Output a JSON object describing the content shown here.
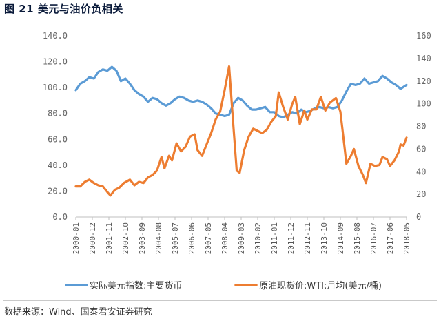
{
  "figure": {
    "title": "图 21 美元与油价负相关",
    "source": "数据来源：Wind、国泰君安证券研究"
  },
  "chart_data": {
    "type": "line",
    "title": "图 21 美元与油价负相关",
    "xlabel": "",
    "ylabel": "",
    "x_tick_labels": [
      "2000-01",
      "2000-12",
      "2001-11",
      "2002-10",
      "2003-09",
      "2004-08",
      "2005-07",
      "2006-06",
      "2007-05",
      "2008-04",
      "2009-03",
      "2010-02",
      "2011-01",
      "2011-12",
      "2012-11",
      "2013-10",
      "2014-09",
      "2015-08",
      "2016-07",
      "2017-06",
      "2018-05"
    ],
    "x_range": [
      "2000-01",
      "2018-05"
    ],
    "y_left": {
      "min": 0,
      "max": 140,
      "ticks": [
        "0.0",
        "20.0",
        "40.0",
        "60.0",
        "80.0",
        "100.0",
        "120.0",
        "140.0"
      ]
    },
    "y_right": {
      "min": 0,
      "max": 160,
      "ticks": [
        "0",
        "20",
        "40",
        "60",
        "80",
        "100",
        "120",
        "140",
        "160"
      ]
    },
    "grid": false,
    "legend_position": "bottom",
    "series": [
      {
        "name": "实际美元指数:主要货币",
        "axis": "left",
        "color": "#5b9bd5",
        "points": [
          [
            "2000-01",
            98
          ],
          [
            "2000-04",
            103
          ],
          [
            "2000-07",
            105
          ],
          [
            "2000-10",
            108
          ],
          [
            "2001-01",
            107
          ],
          [
            "2001-04",
            112
          ],
          [
            "2001-07",
            114
          ],
          [
            "2001-10",
            113
          ],
          [
            "2002-01",
            116
          ],
          [
            "2002-04",
            113
          ],
          [
            "2002-07",
            105
          ],
          [
            "2002-10",
            107
          ],
          [
            "2003-01",
            103
          ],
          [
            "2003-04",
            98
          ],
          [
            "2003-07",
            95
          ],
          [
            "2003-10",
            93
          ],
          [
            "2004-01",
            89
          ],
          [
            "2004-04",
            92
          ],
          [
            "2004-07",
            91
          ],
          [
            "2004-10",
            88
          ],
          [
            "2005-01",
            86
          ],
          [
            "2005-04",
            88
          ],
          [
            "2005-07",
            91
          ],
          [
            "2005-10",
            93
          ],
          [
            "2006-01",
            92
          ],
          [
            "2006-04",
            90
          ],
          [
            "2006-07",
            89
          ],
          [
            "2006-10",
            90
          ],
          [
            "2007-01",
            89
          ],
          [
            "2007-04",
            87
          ],
          [
            "2007-07",
            84
          ],
          [
            "2007-10",
            80
          ],
          [
            "2008-01",
            79
          ],
          [
            "2008-04",
            78
          ],
          [
            "2008-07",
            79
          ],
          [
            "2008-10",
            88
          ],
          [
            "2009-01",
            92
          ],
          [
            "2009-04",
            90
          ],
          [
            "2009-07",
            86
          ],
          [
            "2009-10",
            83
          ],
          [
            "2010-01",
            83
          ],
          [
            "2010-04",
            84
          ],
          [
            "2010-07",
            85
          ],
          [
            "2010-10",
            81
          ],
          [
            "2011-01",
            81
          ],
          [
            "2011-04",
            78
          ],
          [
            "2011-07",
            77
          ],
          [
            "2011-10",
            79
          ],
          [
            "2012-01",
            81
          ],
          [
            "2012-04",
            80
          ],
          [
            "2012-07",
            83
          ],
          [
            "2012-10",
            81
          ],
          [
            "2013-01",
            82
          ],
          [
            "2013-04",
            84
          ],
          [
            "2013-07",
            85
          ],
          [
            "2013-10",
            84
          ],
          [
            "2014-01",
            85
          ],
          [
            "2014-04",
            84
          ],
          [
            "2014-07",
            85
          ],
          [
            "2014-10",
            90
          ],
          [
            "2015-01",
            97
          ],
          [
            "2015-04",
            103
          ],
          [
            "2015-07",
            102
          ],
          [
            "2015-10",
            103
          ],
          [
            "2016-01",
            107
          ],
          [
            "2016-04",
            103
          ],
          [
            "2016-07",
            104
          ],
          [
            "2016-10",
            105
          ],
          [
            "2017-01",
            109
          ],
          [
            "2017-04",
            107
          ],
          [
            "2017-07",
            104
          ],
          [
            "2017-10",
            102
          ],
          [
            "2018-01",
            99
          ],
          [
            "2018-05",
            102
          ]
        ]
      },
      {
        "name": "原油现货价:WTI:月均(美元/桶)",
        "axis": "right",
        "color": "#ed7d31",
        "points": [
          [
            "2000-01",
            27
          ],
          [
            "2000-04",
            27
          ],
          [
            "2000-07",
            31
          ],
          [
            "2000-10",
            33
          ],
          [
            "2001-01",
            30
          ],
          [
            "2001-04",
            28
          ],
          [
            "2001-07",
            27
          ],
          [
            "2001-10",
            22
          ],
          [
            "2001-12",
            19
          ],
          [
            "2002-03",
            24
          ],
          [
            "2002-06",
            26
          ],
          [
            "2002-09",
            30
          ],
          [
            "2003-01",
            33
          ],
          [
            "2003-04",
            28
          ],
          [
            "2003-07",
            31
          ],
          [
            "2003-10",
            30
          ],
          [
            "2004-01",
            35
          ],
          [
            "2004-04",
            37
          ],
          [
            "2004-07",
            41
          ],
          [
            "2004-10",
            53
          ],
          [
            "2004-12",
            43
          ],
          [
            "2005-03",
            54
          ],
          [
            "2005-05",
            50
          ],
          [
            "2005-08",
            65
          ],
          [
            "2005-11",
            58
          ],
          [
            "2006-02",
            62
          ],
          [
            "2006-05",
            71
          ],
          [
            "2006-08",
            73
          ],
          [
            "2006-10",
            59
          ],
          [
            "2007-01",
            54
          ],
          [
            "2007-04",
            64
          ],
          [
            "2007-07",
            74
          ],
          [
            "2007-10",
            86
          ],
          [
            "2008-01",
            93
          ],
          [
            "2008-04",
            112
          ],
          [
            "2008-07",
            133
          ],
          [
            "2008-10",
            77
          ],
          [
            "2008-12",
            41
          ],
          [
            "2009-02",
            39
          ],
          [
            "2009-05",
            59
          ],
          [
            "2009-08",
            71
          ],
          [
            "2009-11",
            78
          ],
          [
            "2010-02",
            76
          ],
          [
            "2010-05",
            74
          ],
          [
            "2010-08",
            77
          ],
          [
            "2010-11",
            84
          ],
          [
            "2011-02",
            89
          ],
          [
            "2011-04",
            110
          ],
          [
            "2011-07",
            97
          ],
          [
            "2011-10",
            86
          ],
          [
            "2012-01",
            100
          ],
          [
            "2012-03",
            106
          ],
          [
            "2012-06",
            82
          ],
          [
            "2012-09",
            94
          ],
          [
            "2012-11",
            86
          ],
          [
            "2013-02",
            95
          ],
          [
            "2013-05",
            95
          ],
          [
            "2013-08",
            106
          ],
          [
            "2013-11",
            94
          ],
          [
            "2014-02",
            101
          ],
          [
            "2014-06",
            105
          ],
          [
            "2014-09",
            93
          ],
          [
            "2014-12",
            59
          ],
          [
            "2015-01",
            47
          ],
          [
            "2015-04",
            54
          ],
          [
            "2015-06",
            60
          ],
          [
            "2015-09",
            45
          ],
          [
            "2015-12",
            37
          ],
          [
            "2016-02",
            30
          ],
          [
            "2016-05",
            47
          ],
          [
            "2016-08",
            45
          ],
          [
            "2016-11",
            46
          ],
          [
            "2017-01",
            53
          ],
          [
            "2017-04",
            51
          ],
          [
            "2017-06",
            45
          ],
          [
            "2017-09",
            50
          ],
          [
            "2017-12",
            58
          ],
          [
            "2018-01",
            64
          ],
          [
            "2018-03",
            63
          ],
          [
            "2018-05",
            70
          ]
        ]
      }
    ]
  }
}
